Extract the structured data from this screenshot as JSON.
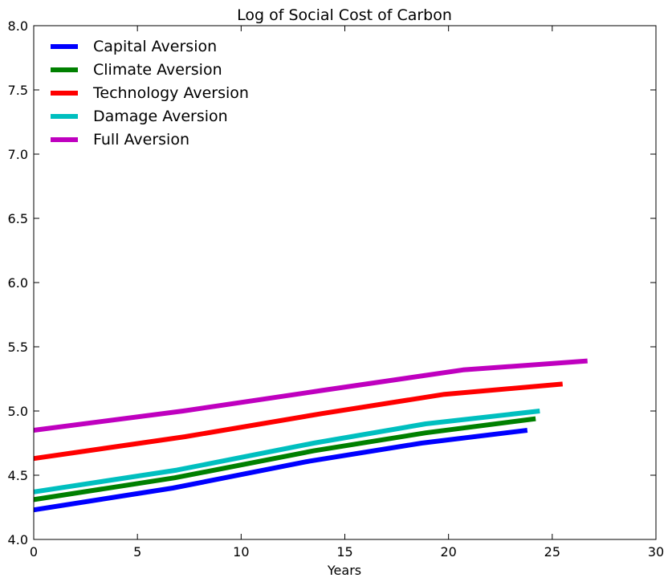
{
  "chart_data": {
    "type": "line",
    "title": "Log of Social Cost of Carbon",
    "xlabel": "Years",
    "ylabel": "",
    "xlim": [
      0,
      30
    ],
    "ylim": [
      4.0,
      8.0
    ],
    "xticks": [
      "0",
      "5",
      "10",
      "15",
      "20",
      "25",
      "30"
    ],
    "yticks": [
      "4.0",
      "4.5",
      "5.0",
      "5.5",
      "6.0",
      "6.5",
      "7.0",
      "7.5",
      "8.0"
    ],
    "grid": false,
    "legend_position": "top-left",
    "series": [
      {
        "name": "Capital Aversion",
        "color": "#0000ff",
        "x": [
          0,
          6.7,
          13.3,
          18.7,
          23.8
        ],
        "y": [
          4.23,
          4.4,
          4.61,
          4.75,
          4.85
        ]
      },
      {
        "name": "Climate Aversion",
        "color": "#008000",
        "x": [
          0,
          6.8,
          13.5,
          18.9,
          24.2
        ],
        "y": [
          4.31,
          4.48,
          4.69,
          4.83,
          4.94
        ]
      },
      {
        "name": "Technology Aversion",
        "color": "#ff0000",
        "x": [
          0,
          7.3,
          13.9,
          19.8,
          25.5
        ],
        "y": [
          4.63,
          4.8,
          4.98,
          5.13,
          5.21
        ]
      },
      {
        "name": "Damage Aversion",
        "color": "#00bfbf",
        "x": [
          0,
          6.9,
          13.5,
          18.9,
          24.4
        ],
        "y": [
          4.37,
          4.54,
          4.75,
          4.9,
          5.0
        ]
      },
      {
        "name": "Full Aversion",
        "color": "#bf00bf",
        "x": [
          0,
          7.2,
          13.9,
          20.7,
          26.7
        ],
        "y": [
          4.85,
          5.0,
          5.16,
          5.32,
          5.39
        ]
      }
    ]
  }
}
